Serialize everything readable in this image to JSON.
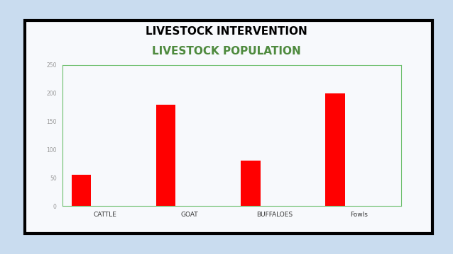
{
  "header": {
    "title": "LIVESTOCK INTERVENTION"
  },
  "chart_data": {
    "type": "bar",
    "title": "LIVESTOCK POPULATION",
    "categories": [
      "CATTLE",
      "GOAT",
      "BUFFALOES",
      "Fowls"
    ],
    "values": [
      55,
      180,
      80,
      200
    ],
    "color": "#ff0000",
    "ylim": [
      0,
      250
    ],
    "yticks": [
      0,
      50,
      100,
      150,
      200,
      250
    ],
    "grid": false
  }
}
